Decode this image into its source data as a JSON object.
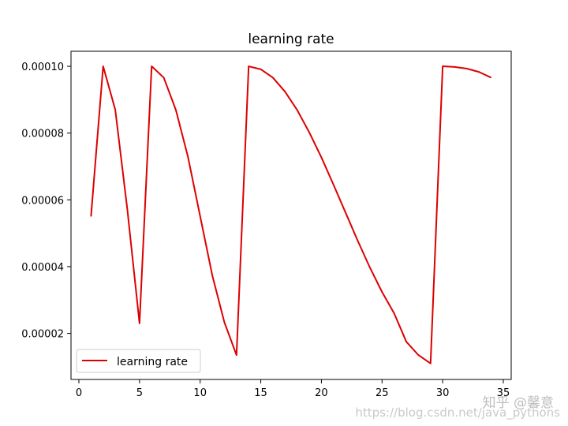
{
  "chart_data": {
    "type": "line",
    "title": "learning rate",
    "xlabel": "",
    "ylabel": "",
    "xlim": [
      -0.65,
      35.65
    ],
    "ylim": [
      6.2e-06,
      0.0001045
    ],
    "x_ticks": [
      0,
      5,
      10,
      15,
      20,
      25,
      30,
      35
    ],
    "x_tick_labels": [
      "0",
      "5",
      "10",
      "15",
      "20",
      "25",
      "30",
      "35"
    ],
    "y_ticks": [
      2e-05,
      4e-05,
      6e-05,
      8e-05,
      0.0001
    ],
    "y_tick_labels": [
      "0.00002",
      "0.00004",
      "0.00006",
      "0.00008",
      "0.00010"
    ],
    "grid": false,
    "legend_position": "lower-left",
    "series": [
      {
        "name": "learning rate",
        "color": "#dd0000",
        "x": [
          1,
          2,
          3,
          4,
          5,
          6,
          7,
          8,
          9,
          10,
          11,
          12,
          13,
          14,
          15,
          16,
          17,
          18,
          19,
          20,
          21,
          22,
          23,
          24,
          25,
          26,
          27,
          28,
          29,
          30,
          31,
          32,
          33,
          34
        ],
        "values": [
          5.5e-05,
          0.0001,
          8.7e-05,
          5.7e-05,
          2.3e-05,
          0.0001,
          9.66e-05,
          8.69e-05,
          7.28e-05,
          5.51e-05,
          3.74e-05,
          2.33e-05,
          1.35e-05,
          0.0001,
          9.91e-05,
          9.66e-05,
          9.24e-05,
          8.69e-05,
          8.02e-05,
          7.27e-05,
          6.45e-05,
          5.61e-05,
          4.77e-05,
          3.97e-05,
          3.24e-05,
          2.6e-05,
          1.75e-05,
          1.35e-05,
          1.1e-05,
          0.0001,
          9.98e-05,
          9.93e-05,
          9.83e-05,
          9.66e-05
        ]
      }
    ]
  },
  "watermark": {
    "brand": "知乎 @馨意",
    "url": "https://blog.csdn.net/java_pythons"
  }
}
